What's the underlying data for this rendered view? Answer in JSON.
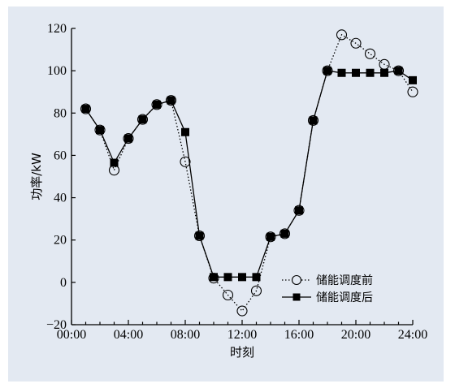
{
  "chart_data": {
    "type": "line",
    "xlabel": "时刻",
    "ylabel": "功率/kW",
    "xlim": [
      0,
      24
    ],
    "ylim": [
      -20,
      120
    ],
    "x_ticks": [
      "00:00",
      "04:00",
      "08:00",
      "12:00",
      "16:00",
      "20:00",
      "24:00"
    ],
    "y_ticks": [
      "−20",
      "0",
      "20",
      "40",
      "60",
      "80",
      "100",
      "120"
    ],
    "grid": false,
    "legend_position": "lower-right",
    "x": [
      1,
      2,
      3,
      4,
      5,
      6,
      7,
      8,
      9,
      10,
      11,
      12,
      13,
      14,
      15,
      16,
      17,
      18,
      19,
      20,
      21,
      22,
      23,
      24
    ],
    "series": [
      {
        "name": "储能调度前",
        "style": "dotted-open-circle",
        "color": "#000000",
        "values": [
          82,
          72,
          53,
          68,
          77,
          84,
          86,
          57,
          22,
          2,
          -6,
          -13.5,
          -4,
          21.5,
          23,
          34,
          76.5,
          100,
          117,
          113,
          108,
          103,
          100,
          90
        ]
      },
      {
        "name": "储能调度后",
        "style": "solid-filled-square",
        "color": "#000000",
        "values": [
          82,
          72,
          56.5,
          68,
          77,
          84,
          86,
          71,
          22,
          2.5,
          2.5,
          2.5,
          2.5,
          21.5,
          23,
          34,
          76.5,
          100,
          99,
          99,
          99,
          99,
          100,
          95.5
        ]
      }
    ]
  }
}
